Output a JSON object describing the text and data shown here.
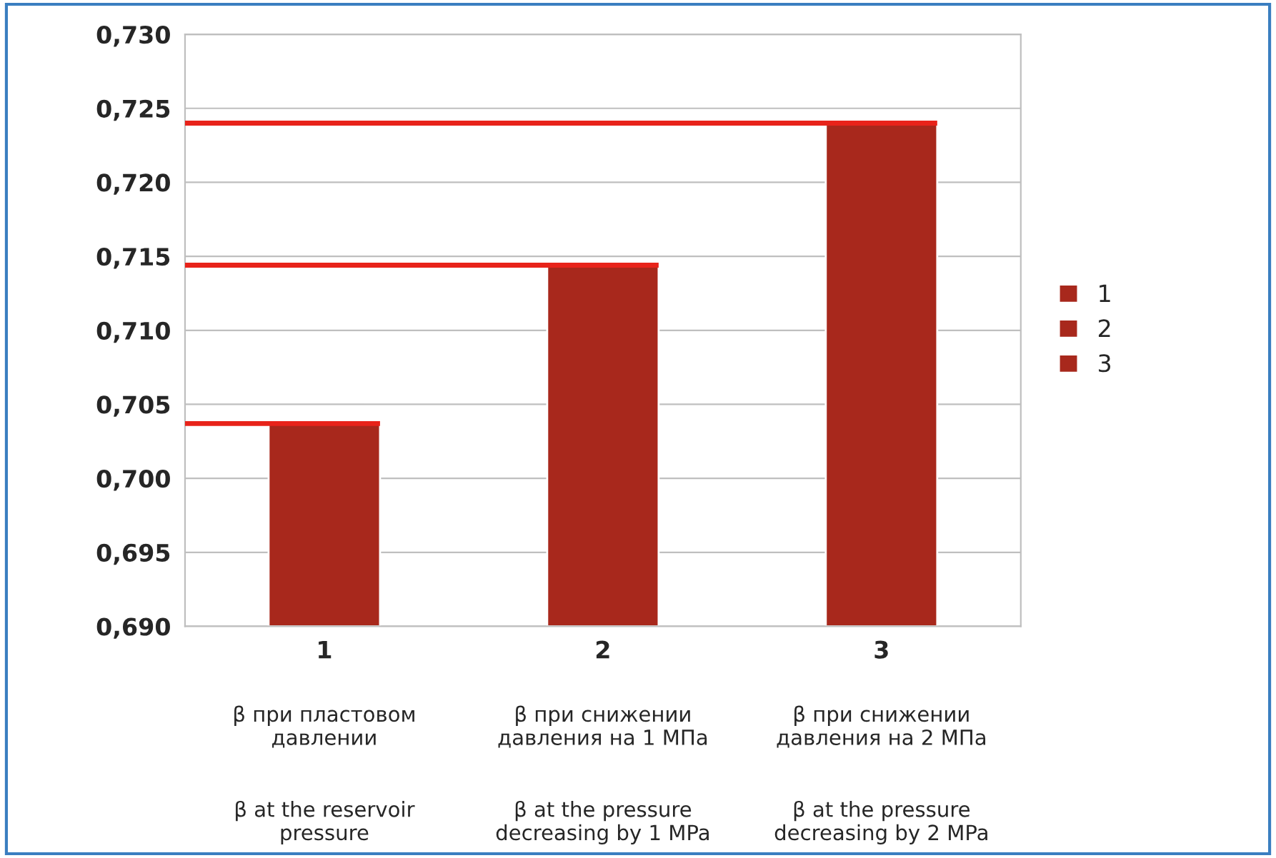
{
  "chart_data": {
    "type": "bar",
    "categories": [
      "1",
      "2",
      "3"
    ],
    "series": [
      {
        "name": "1",
        "color": "#a8281c",
        "values": [
          0.7037,
          null,
          null
        ]
      },
      {
        "name": "2",
        "color": "#a8281c",
        "values": [
          null,
          0.7144,
          null
        ]
      },
      {
        "name": "3",
        "color": "#a8281c",
        "values": [
          null,
          null,
          0.724
        ]
      }
    ],
    "ylim": [
      0.69,
      0.73
    ],
    "yticks": [
      {
        "value": 0.69,
        "label": "0,690"
      },
      {
        "value": 0.695,
        "label": "0,695"
      },
      {
        "value": 0.7,
        "label": "0,700"
      },
      {
        "value": 0.705,
        "label": "0,705"
      },
      {
        "value": 0.71,
        "label": "0,710"
      },
      {
        "value": 0.715,
        "label": "0,715"
      },
      {
        "value": 0.72,
        "label": "0,720"
      },
      {
        "value": 0.725,
        "label": "0,725"
      },
      {
        "value": 0.73,
        "label": "0,730"
      }
    ],
    "grid": "y",
    "legend": "right",
    "ref_lines": [
      {
        "axis": "y",
        "value": 0.7037,
        "color": "#e8231a"
      },
      {
        "axis": "y",
        "value": 0.7144,
        "color": "#e8231a"
      },
      {
        "axis": "y",
        "value": 0.724,
        "color": "#e8231a"
      }
    ],
    "annotations": [
      "β при пластовом\nдавлении",
      "β at the reservoir\npressure",
      "β при снижении\nдавления на 1 МПа",
      "β at the pressure\ndecreasing by 1 MPa",
      "β при снижении\nдавления на 2 МПа",
      "β at the pressure\ndecreasing by 2 MPa"
    ]
  }
}
